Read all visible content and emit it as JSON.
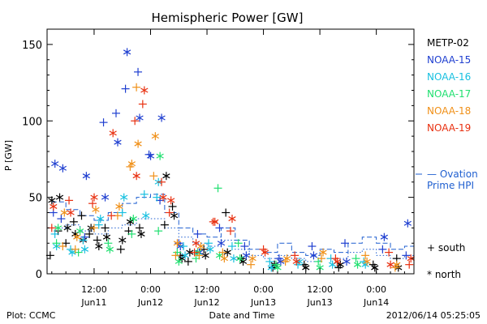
{
  "chart_data": {
    "type": "scatter",
    "title": "Hemispheric Power [GW]",
    "ylabel": "P [GW]",
    "xlabel": "Date and Time",
    "footer_left": "Plot: CCMC",
    "footer_right": "2012/06/14 05:25:05",
    "ylim": [
      0,
      160
    ],
    "y_ticks": [
      0,
      50,
      100,
      150
    ],
    "xlim": [
      "2012-06-11T02:00",
      "2012-06-14T08:00"
    ],
    "x_ticks": [
      {
        "time": "2012-06-11T12:00",
        "label_top": "12:00",
        "label_bottom": "Jun11"
      },
      {
        "time": "2012-06-12T00:00",
        "label_top": "0:00",
        "label_bottom": "Jun12"
      },
      {
        "time": "2012-06-12T12:00",
        "label_top": "12:00",
        "label_bottom": "Jun12"
      },
      {
        "time": "2012-06-13T00:00",
        "label_top": "0:00",
        "label_bottom": "Jun13"
      },
      {
        "time": "2012-06-13T12:00",
        "label_top": "12:00",
        "label_bottom": "Jun13"
      },
      {
        "time": "2012-06-14T00:00",
        "label_top": "0:00",
        "label_bottom": "Jun14"
      }
    ],
    "legend": {
      "placement": "right",
      "marker_south_label": "+ south",
      "marker_north_label": "* north",
      "model_label_line1": "— Ovation",
      "model_label_line2": "Prime HPI",
      "model_color": "#1f5fd0"
    },
    "series": [
      {
        "name": "METP-02",
        "color": "#000000",
        "points": [
          {
            "t": "2012-06-11T02:40",
            "south": 12,
            "north": 48
          },
          {
            "t": "2012-06-11T04:20",
            "south": 28,
            "north": 50
          },
          {
            "t": "2012-06-11T06:00",
            "south": 20,
            "north": 30
          },
          {
            "t": "2012-06-11T07:40",
            "south": 34,
            "north": 26
          },
          {
            "t": "2012-06-11T09:20",
            "south": 38,
            "north": 22
          },
          {
            "t": "2012-06-11T11:00",
            "south": 26,
            "north": 30
          },
          {
            "t": "2012-06-11T12:40",
            "south": 22,
            "north": 18
          },
          {
            "t": "2012-06-11T14:20",
            "south": 30,
            "north": 24
          },
          {
            "t": "2012-06-11T17:40",
            "south": 16,
            "north": 22
          },
          {
            "t": "2012-06-11T19:20",
            "south": 28,
            "north": 34
          },
          {
            "t": "2012-06-11T21:40",
            "south": 30,
            "north": 26
          },
          {
            "t": "2012-06-12T03:00",
            "south": 32,
            "north": 64
          },
          {
            "t": "2012-06-12T04:40",
            "south": 44,
            "north": 38
          },
          {
            "t": "2012-06-12T06:20",
            "south": 12,
            "north": 10
          },
          {
            "t": "2012-06-12T08:00",
            "south": 8,
            "north": 14
          },
          {
            "t": "2012-06-12T11:20",
            "south": 16,
            "north": 12
          },
          {
            "t": "2012-06-12T16:00",
            "south": 40,
            "north": 14
          },
          {
            "t": "2012-06-12T19:20",
            "south": 10,
            "north": 8
          },
          {
            "t": "2012-06-13T02:00",
            "south": 4,
            "north": 6
          },
          {
            "t": "2012-06-13T08:40",
            "south": 6,
            "north": 4
          },
          {
            "t": "2012-06-13T16:00",
            "south": 4,
            "north": 6
          },
          {
            "t": "2012-06-13T23:20",
            "south": 6,
            "north": 4
          },
          {
            "t": "2012-06-14T04:20",
            "south": 10,
            "north": 4
          }
        ]
      },
      {
        "name": "NOAA-15",
        "color": "#1f3fd0",
        "points": [
          {
            "t": "2012-06-11T03:20",
            "south": 40,
            "north": 72
          },
          {
            "t": "2012-06-11T05:00",
            "south": 36,
            "north": 69
          },
          {
            "t": "2012-06-11T10:00",
            "south": 24,
            "north": 64
          },
          {
            "t": "2012-06-11T14:00",
            "south": 99,
            "north": 50
          },
          {
            "t": "2012-06-11T16:40",
            "south": 105,
            "north": 86
          },
          {
            "t": "2012-06-11T18:40",
            "south": 121,
            "north": 145
          },
          {
            "t": "2012-06-11T21:20",
            "south": 132,
            "north": 102
          },
          {
            "t": "2012-06-11T23:40",
            "south": 78,
            "north": 77
          },
          {
            "t": "2012-06-12T02:00",
            "south": 48,
            "north": 102
          },
          {
            "t": "2012-06-12T06:00",
            "south": 20,
            "north": 18
          },
          {
            "t": "2012-06-12T10:00",
            "south": 26,
            "north": 14
          },
          {
            "t": "2012-06-12T14:40",
            "south": 30,
            "north": 20
          },
          {
            "t": "2012-06-12T20:00",
            "south": 18,
            "north": 12
          },
          {
            "t": "2012-06-13T03:20",
            "south": 10,
            "north": 8
          },
          {
            "t": "2012-06-13T10:20",
            "south": 18,
            "north": 12
          },
          {
            "t": "2012-06-13T17:20",
            "south": 20,
            "north": 8
          },
          {
            "t": "2012-06-14T01:20",
            "south": 16,
            "north": 24
          },
          {
            "t": "2012-06-14T06:20",
            "south": 12,
            "north": 33
          }
        ]
      },
      {
        "name": "NOAA-16",
        "color": "#18c0e0",
        "points": [
          {
            "t": "2012-06-11T03:40",
            "south": 26,
            "north": 18
          },
          {
            "t": "2012-06-11T07:00",
            "south": 16,
            "north": 14
          },
          {
            "t": "2012-06-11T09:40",
            "south": 22,
            "north": 16
          },
          {
            "t": "2012-06-11T13:00",
            "south": 32,
            "north": 36
          },
          {
            "t": "2012-06-11T18:00",
            "south": 40,
            "north": 50
          },
          {
            "t": "2012-06-11T22:40",
            "south": 52,
            "north": 38
          },
          {
            "t": "2012-06-12T01:20",
            "south": 50,
            "north": 60
          },
          {
            "t": "2012-06-12T07:00",
            "south": 18,
            "north": 12
          },
          {
            "t": "2012-06-12T12:20",
            "south": 20,
            "north": 16
          },
          {
            "t": "2012-06-12T17:20",
            "south": 18,
            "north": 10
          },
          {
            "t": "2012-06-13T01:20",
            "south": 8,
            "north": 4
          },
          {
            "t": "2012-06-13T07:20",
            "south": 6,
            "north": 8
          },
          {
            "t": "2012-06-13T14:20",
            "south": 10,
            "north": 6
          },
          {
            "t": "2012-06-13T21:20",
            "south": 8,
            "north": 6
          }
        ]
      },
      {
        "name": "NOAA-17",
        "color": "#20e070",
        "points": [
          {
            "t": "2012-06-11T04:00",
            "south": 20,
            "north": 30
          },
          {
            "t": "2012-06-11T08:40",
            "south": 14,
            "north": 28
          },
          {
            "t": "2012-06-11T15:00",
            "south": 20,
            "north": 16
          },
          {
            "t": "2012-06-11T20:00",
            "south": 26,
            "north": 36
          },
          {
            "t": "2012-06-12T01:40",
            "south": 28,
            "north": 77
          },
          {
            "t": "2012-06-12T05:40",
            "south": 14,
            "north": 8
          },
          {
            "t": "2012-06-12T09:40",
            "south": 10,
            "north": 14
          },
          {
            "t": "2012-06-12T14:20",
            "south": 56,
            "north": 12
          },
          {
            "t": "2012-06-12T18:40",
            "south": 20,
            "north": 10
          },
          {
            "t": "2012-06-13T02:40",
            "south": 6,
            "north": 4
          },
          {
            "t": "2012-06-13T11:40",
            "south": 8,
            "north": 4
          },
          {
            "t": "2012-06-13T19:40",
            "south": 10,
            "north": 6
          }
        ]
      },
      {
        "name": "NOAA-18",
        "color": "#f09018",
        "points": [
          {
            "t": "2012-06-11T05:20",
            "south": 18,
            "north": 40
          },
          {
            "t": "2012-06-11T08:00",
            "south": 16,
            "north": 24
          },
          {
            "t": "2012-06-11T12:00",
            "south": 30,
            "north": 42
          },
          {
            "t": "2012-06-11T17:00",
            "south": 38,
            "north": 44
          },
          {
            "t": "2012-06-11T19:40",
            "south": 70,
            "north": 72
          },
          {
            "t": "2012-06-11T21:00",
            "south": 122,
            "north": 85
          },
          {
            "t": "2012-06-12T00:40",
            "south": 64,
            "north": 90
          },
          {
            "t": "2012-06-12T05:20",
            "south": 12,
            "north": 20
          },
          {
            "t": "2012-06-12T10:20",
            "south": 12,
            "north": 18
          },
          {
            "t": "2012-06-12T15:20",
            "south": 14,
            "north": 10
          },
          {
            "t": "2012-06-12T21:20",
            "south": 6,
            "north": 10
          },
          {
            "t": "2012-06-13T04:40",
            "south": 8,
            "north": 10
          },
          {
            "t": "2012-06-13T12:20",
            "south": 10,
            "north": 14
          },
          {
            "t": "2012-06-13T21:40",
            "south": 12,
            "north": 8
          },
          {
            "t": "2012-06-14T04:00",
            "south": 4,
            "north": 6
          }
        ]
      },
      {
        "name": "NOAA-19",
        "color": "#e83010",
        "points": [
          {
            "t": "2012-06-11T03:00",
            "south": 30,
            "north": 44
          },
          {
            "t": "2012-06-11T06:40",
            "south": 48,
            "north": 40
          },
          {
            "t": "2012-06-11T11:40",
            "south": 46,
            "north": 50
          },
          {
            "t": "2012-06-11T15:40",
            "south": 38,
            "north": 92
          },
          {
            "t": "2012-06-11T20:40",
            "south": 100,
            "north": 64
          },
          {
            "t": "2012-06-11T22:20",
            "south": 111,
            "north": 120
          },
          {
            "t": "2012-06-12T02:20",
            "south": 60,
            "north": 50
          },
          {
            "t": "2012-06-12T04:00",
            "south": 40,
            "north": 48
          },
          {
            "t": "2012-06-12T09:20",
            "south": 14,
            "north": 20
          },
          {
            "t": "2012-06-12T13:20",
            "south": 34,
            "north": 34
          },
          {
            "t": "2012-06-12T17:00",
            "south": 28,
            "north": 36
          },
          {
            "t": "2012-06-13T00:00",
            "south": 16,
            "north": 14
          },
          {
            "t": "2012-06-13T06:40",
            "south": 12,
            "north": 8
          },
          {
            "t": "2012-06-13T15:20",
            "south": 10,
            "north": 8
          },
          {
            "t": "2012-06-14T02:40",
            "south": 14,
            "north": 6
          },
          {
            "t": "2012-06-14T07:00",
            "south": 6,
            "north": 10
          }
        ]
      }
    ],
    "model": {
      "name": "Ovation Prime HPI",
      "north": [
        {
          "t": "2012-06-11T03:00",
          "v": 47
        },
        {
          "t": "2012-06-11T06:00",
          "v": 42
        },
        {
          "t": "2012-06-11T09:00",
          "v": 38
        },
        {
          "t": "2012-06-11T12:00",
          "v": 35
        },
        {
          "t": "2012-06-11T15:00",
          "v": 40
        },
        {
          "t": "2012-06-11T18:00",
          "v": 46
        },
        {
          "t": "2012-06-11T21:00",
          "v": 50
        },
        {
          "t": "2012-06-12T00:00",
          "v": 52
        },
        {
          "t": "2012-06-12T03:00",
          "v": 40
        },
        {
          "t": "2012-06-12T06:00",
          "v": 30
        },
        {
          "t": "2012-06-12T09:00",
          "v": 26
        },
        {
          "t": "2012-06-12T12:00",
          "v": 24
        },
        {
          "t": "2012-06-12T15:00",
          "v": 30
        },
        {
          "t": "2012-06-12T18:00",
          "v": 22
        },
        {
          "t": "2012-06-12T21:00",
          "v": 16
        },
        {
          "t": "2012-06-13T00:00",
          "v": 14
        },
        {
          "t": "2012-06-13T03:00",
          "v": 20
        },
        {
          "t": "2012-06-13T06:00",
          "v": 14
        },
        {
          "t": "2012-06-13T09:00",
          "v": 12
        },
        {
          "t": "2012-06-13T12:00",
          "v": 16
        },
        {
          "t": "2012-06-13T15:00",
          "v": 14
        },
        {
          "t": "2012-06-13T18:00",
          "v": 20
        },
        {
          "t": "2012-06-13T21:00",
          "v": 24
        },
        {
          "t": "2012-06-14T00:00",
          "v": 20
        },
        {
          "t": "2012-06-14T03:00",
          "v": 16
        },
        {
          "t": "2012-06-14T06:00",
          "v": 18
        },
        {
          "t": "2012-06-14T08:00",
          "v": 16
        }
      ],
      "south": [
        {
          "t": "2012-06-11T03:00",
          "v": 30
        },
        {
          "t": "2012-06-11T06:00",
          "v": 32
        },
        {
          "t": "2012-06-11T09:00",
          "v": 28
        },
        {
          "t": "2012-06-11T12:00",
          "v": 26
        },
        {
          "t": "2012-06-11T15:00",
          "v": 30
        },
        {
          "t": "2012-06-11T18:00",
          "v": 32
        },
        {
          "t": "2012-06-11T21:00",
          "v": 36
        },
        {
          "t": "2012-06-12T00:00",
          "v": 36
        },
        {
          "t": "2012-06-12T03:00",
          "v": 30
        },
        {
          "t": "2012-06-12T06:00",
          "v": 24
        },
        {
          "t": "2012-06-12T09:00",
          "v": 20
        },
        {
          "t": "2012-06-12T12:00",
          "v": 18
        },
        {
          "t": "2012-06-12T15:00",
          "v": 22
        },
        {
          "t": "2012-06-12T18:00",
          "v": 16
        },
        {
          "t": "2012-06-12T21:00",
          "v": 12
        },
        {
          "t": "2012-06-13T00:00",
          "v": 10
        },
        {
          "t": "2012-06-13T03:00",
          "v": 12
        },
        {
          "t": "2012-06-13T06:00",
          "v": 10
        },
        {
          "t": "2012-06-13T09:00",
          "v": 8
        },
        {
          "t": "2012-06-13T12:00",
          "v": 10
        },
        {
          "t": "2012-06-13T15:00",
          "v": 10
        },
        {
          "t": "2012-06-13T18:00",
          "v": 14
        },
        {
          "t": "2012-06-13T21:00",
          "v": 16
        },
        {
          "t": "2012-06-14T00:00",
          "v": 12
        },
        {
          "t": "2012-06-14T03:00",
          "v": 10
        },
        {
          "t": "2012-06-14T06:00",
          "v": 12
        },
        {
          "t": "2012-06-14T08:00",
          "v": 10
        }
      ]
    }
  }
}
